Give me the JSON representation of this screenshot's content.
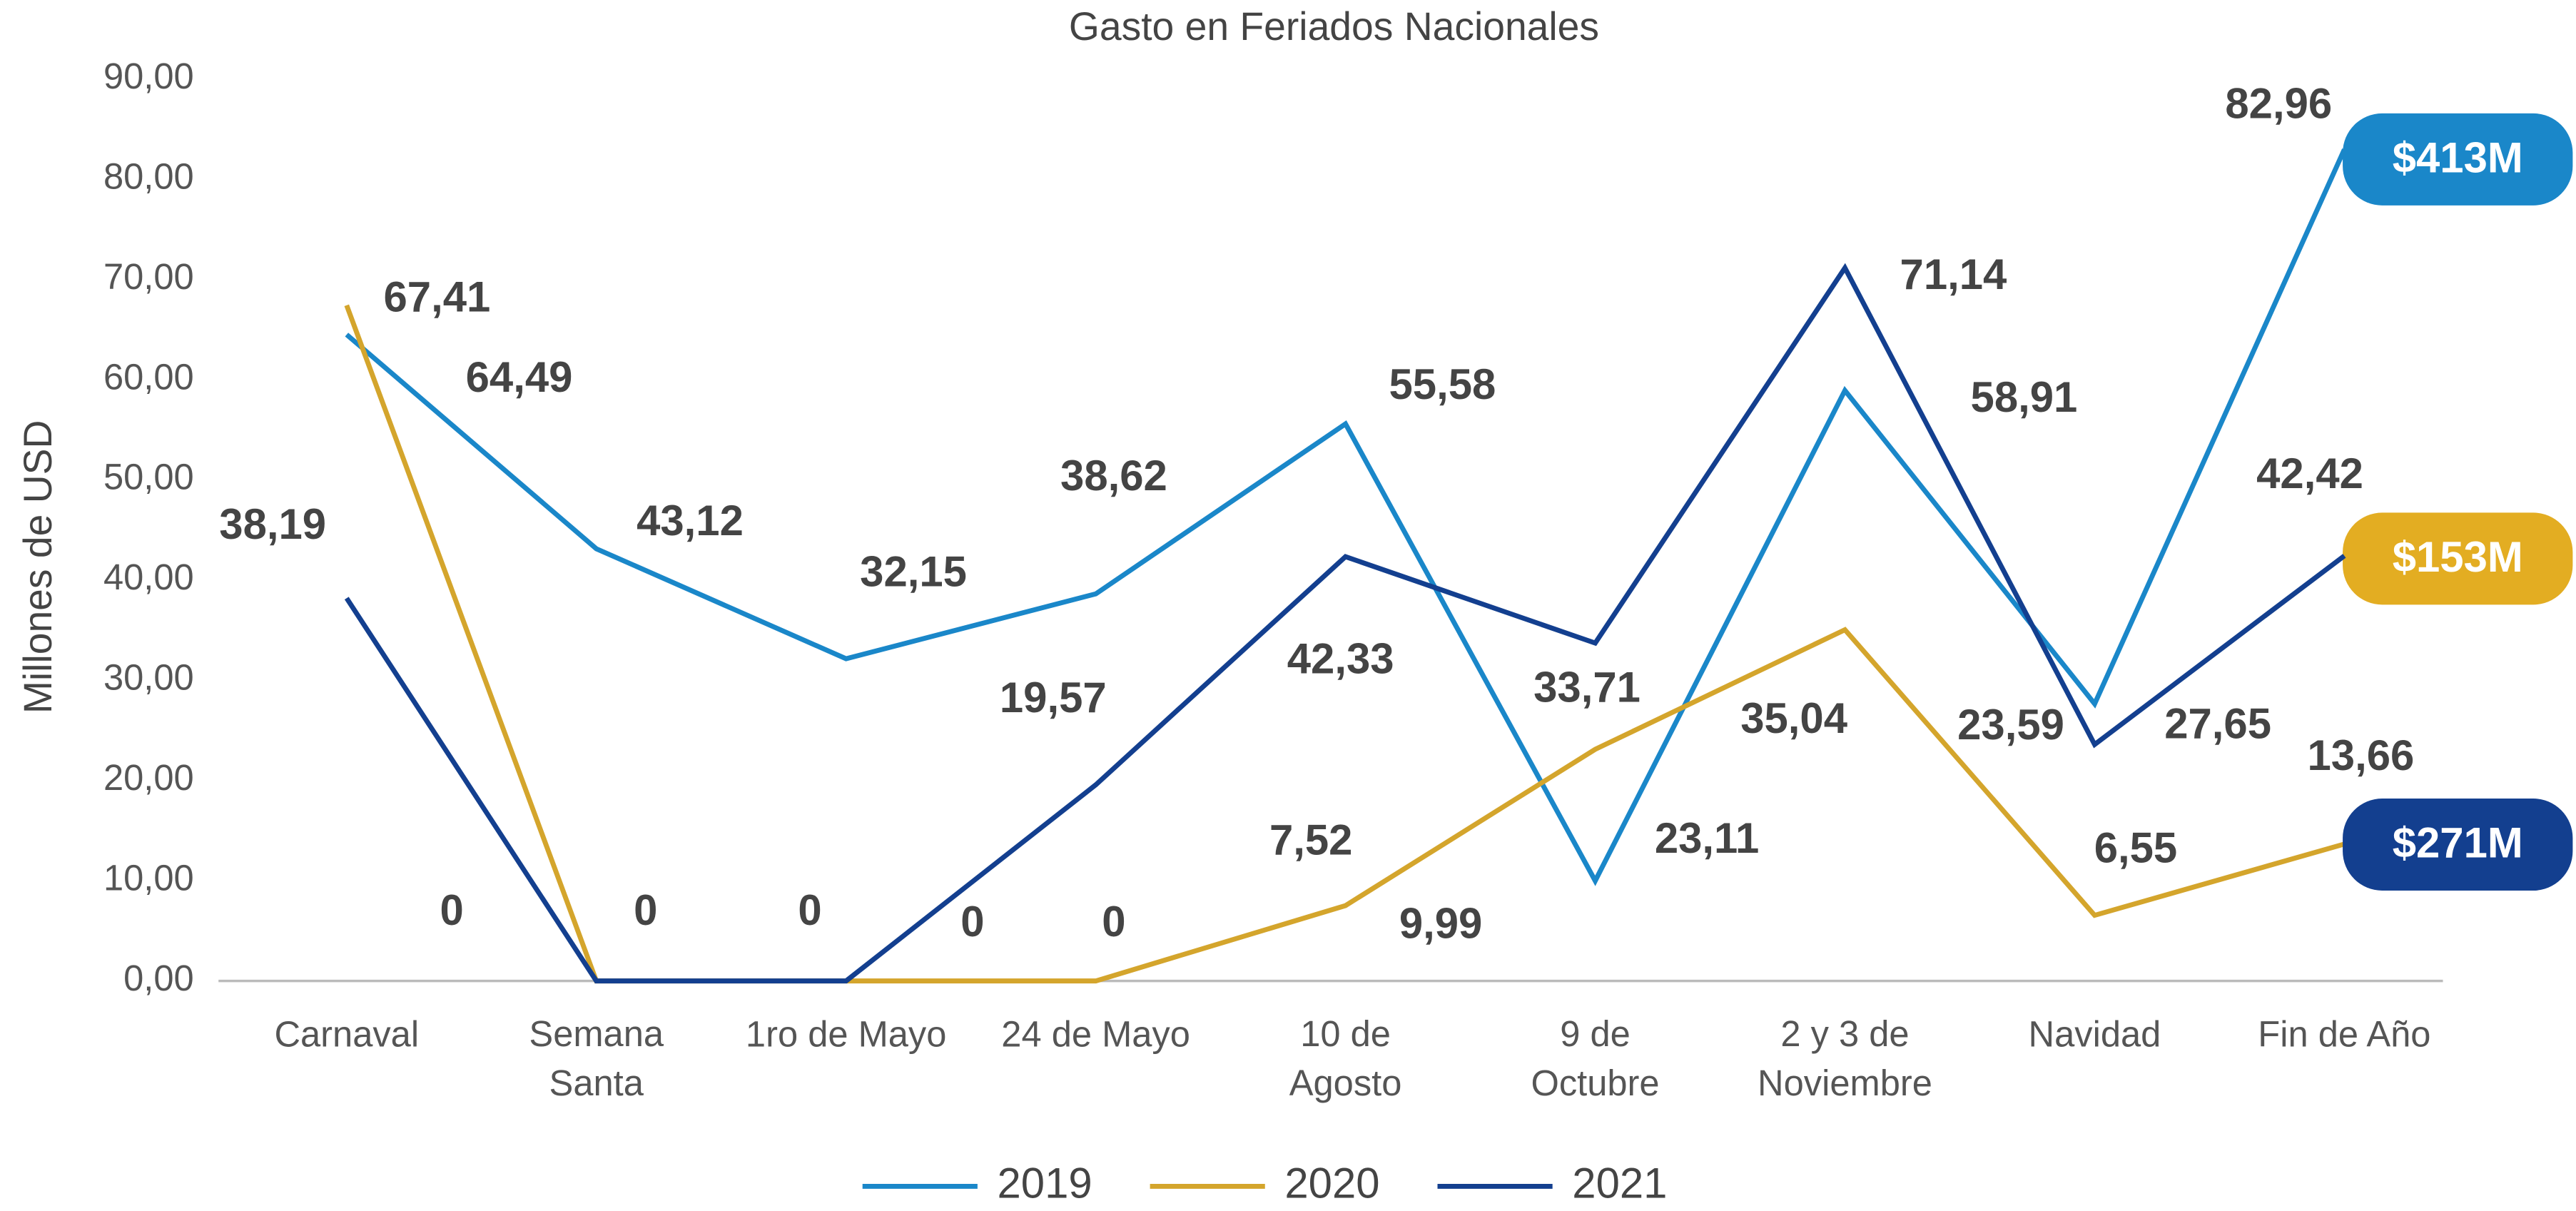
{
  "chart_data": {
    "type": "line",
    "title": "Gasto en Feriados Nacionales",
    "y_label": "Millones de USD",
    "categories": [
      "Carnaval",
      "Semana Santa",
      "1ro de Mayo",
      "24 de Mayo",
      "10 de Agosto",
      "9 de Octubre",
      "2 y 3 de Noviembre",
      "Navidad",
      "Fin de Año"
    ],
    "series": [
      {
        "name": "2019",
        "color": "#1a87c9",
        "total_label": "$413M",
        "values": [
          64.49,
          43.12,
          32.15,
          38.62,
          55.58,
          9.99,
          58.91,
          27.65,
          82.96
        ],
        "value_labels": [
          "64,49",
          "43,12",
          "32,15",
          "38,62",
          "55,58",
          "9,99",
          "58,91",
          "27,65",
          "82,96"
        ]
      },
      {
        "name": "2020",
        "color": "#d4a52c",
        "total_label": "$153M",
        "values": [
          67.41,
          0,
          0,
          0,
          7.52,
          23.11,
          35.04,
          6.55,
          13.66
        ],
        "value_labels": [
          "67,41",
          "0",
          "0",
          "0",
          "7,52",
          "23,11",
          "35,04",
          "6,55",
          "13,66"
        ]
      },
      {
        "name": "2021",
        "color": "#133f8f",
        "total_label": "$271M",
        "values": [
          38.19,
          0,
          0,
          19.57,
          42.33,
          33.71,
          71.14,
          23.59,
          42.42
        ],
        "value_labels": [
          "38,19",
          "0",
          "0",
          "19,57",
          "42,33",
          "33,71",
          "71,14",
          "23,59",
          "42,42"
        ]
      }
    ],
    "ylim": [
      0,
      90
    ],
    "yticks": [
      {
        "value": 0,
        "label": "0,00"
      },
      {
        "value": 10,
        "label": "10,00"
      },
      {
        "value": 20,
        "label": "20,00"
      },
      {
        "value": 30,
        "label": "30,00"
      },
      {
        "value": 40,
        "label": "40,00"
      },
      {
        "value": 50,
        "label": "50,00"
      },
      {
        "value": 60,
        "label": "60,00"
      },
      {
        "value": 70,
        "label": "70,00"
      },
      {
        "value": 80,
        "label": "80,00"
      },
      {
        "value": 90,
        "label": "90,00"
      }
    ],
    "grid": false,
    "legend": "bottom"
  }
}
